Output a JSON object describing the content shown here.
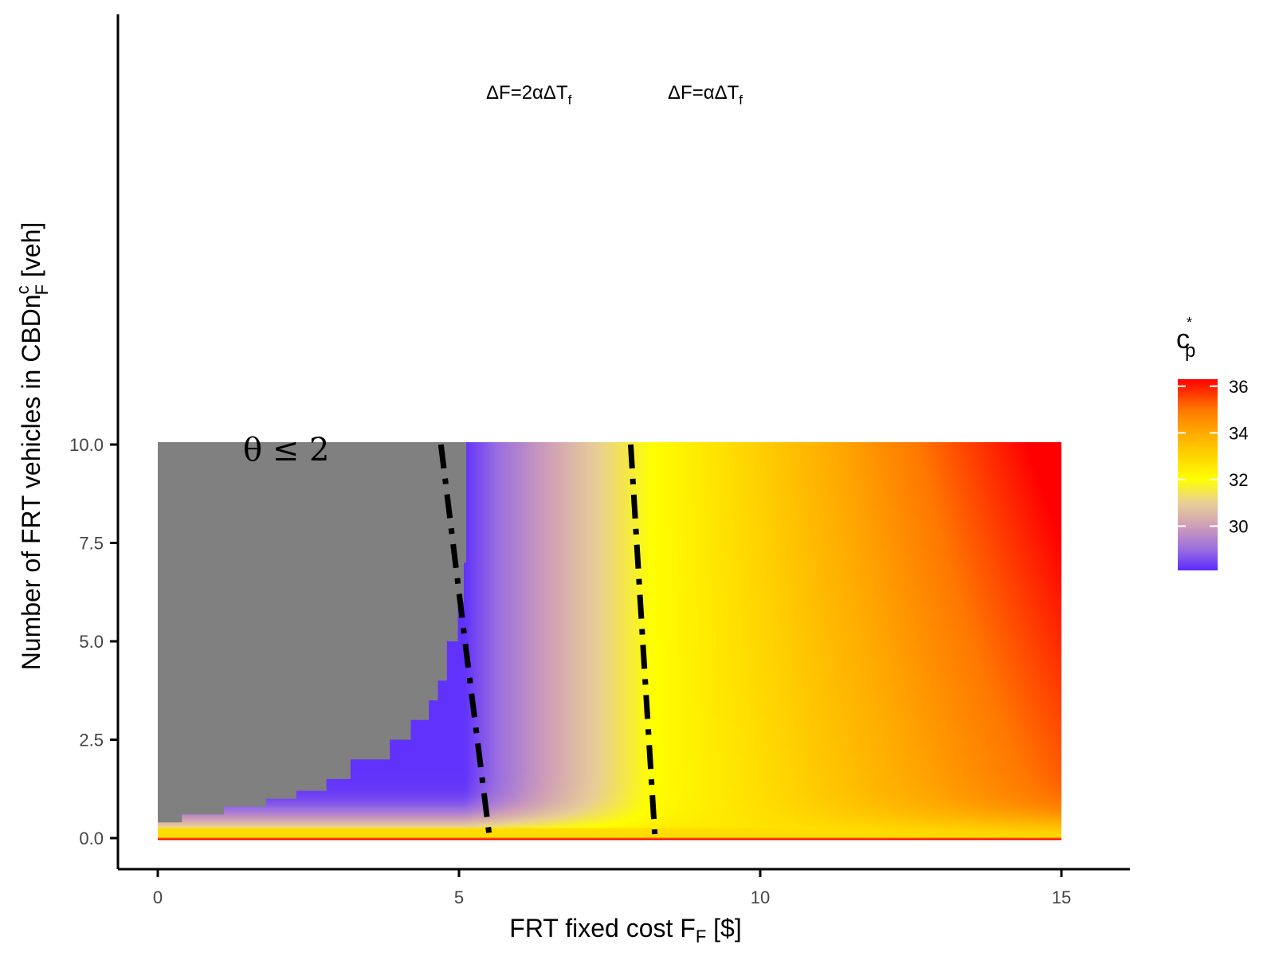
{
  "chart_data": {
    "type": "heatmap",
    "xlabel": "FRT fixed cost F",
    "xlabel_sub": "F",
    "xlabel_suffix": " [$]",
    "ylabel": "Number of FRT vehicles in CBDn",
    "ylabel_sub": "F",
    "ylabel_sup": "c",
    "ylabel_suffix": " [veh]",
    "xlim": [
      0,
      15
    ],
    "ylim": [
      0,
      10
    ],
    "x_ticks": [
      0,
      5,
      10,
      15
    ],
    "x_tick_labels": [
      "0",
      "5",
      "10",
      "15"
    ],
    "y_ticks": [
      0,
      2.5,
      5,
      7.5,
      10
    ],
    "y_tick_labels": [
      "0.0",
      "2.5",
      "5.0",
      "7.5",
      "10.0"
    ],
    "grid": false,
    "legend": {
      "title": "c",
      "title_sub": "p",
      "title_sup": "*",
      "placement": "right",
      "range": [
        28.1,
        36.3
      ],
      "ticks": [
        30,
        32,
        34,
        36
      ],
      "tick_labels": [
        "30",
        "32",
        "34",
        "36"
      ],
      "colors": [
        {
          "value": 28.1,
          "color": "#5a2bff"
        },
        {
          "value": 29.0,
          "color": "#9b6ee0"
        },
        {
          "value": 30.0,
          "color": "#cf9eb8"
        },
        {
          "value": 31.0,
          "color": "#e9cf96"
        },
        {
          "value": 32.0,
          "color": "#ffff00"
        },
        {
          "value": 33.0,
          "color": "#ffd500"
        },
        {
          "value": 34.0,
          "color": "#ffaa00"
        },
        {
          "value": 35.0,
          "color": "#ff7700"
        },
        {
          "value": 36.3,
          "color": "#ff0000"
        }
      ]
    },
    "region": {
      "label_theta": "θ",
      "label_rest": " ≤ 2",
      "label_at": [
        6,
        5
      ],
      "fill": "#808080",
      "boundary": [
        {
          "y": 0.4,
          "x": 0.4
        },
        {
          "y": 0.6,
          "x": 1.1
        },
        {
          "y": 0.8,
          "x": 1.8
        },
        {
          "y": 1.0,
          "x": 2.3
        },
        {
          "y": 1.2,
          "x": 2.8
        },
        {
          "y": 1.5,
          "x": 3.2
        },
        {
          "y": 2.0,
          "x": 3.85
        },
        {
          "y": 2.5,
          "x": 4.2
        },
        {
          "y": 3.0,
          "x": 4.5
        },
        {
          "y": 3.5,
          "x": 4.65
        },
        {
          "y": 4.0,
          "x": 4.8
        },
        {
          "y": 5.0,
          "x": 4.98
        },
        {
          "y": 6.0,
          "x": 5.08
        },
        {
          "y": 7.0,
          "x": 5.12
        },
        {
          "y": 10.0,
          "x": 5.12
        }
      ]
    },
    "series": [
      {
        "name": "ΔF=2αΔT",
        "name_sub": "f",
        "style": "dashdot",
        "color": "#000000",
        "points": [
          {
            "x": 4.7,
            "y": 10.0
          },
          {
            "x": 5.1,
            "y": 5.0
          },
          {
            "x": 5.5,
            "y": 0.1
          }
        ]
      },
      {
        "name": "ΔF=αΔT",
        "name_sub": "f",
        "style": "dashdot",
        "color": "#000000",
        "points": [
          {
            "x": 7.85,
            "y": 10.0
          },
          {
            "x": 8.05,
            "y": 5.0
          },
          {
            "x": 8.25,
            "y": 0.1
          }
        ]
      }
    ]
  }
}
